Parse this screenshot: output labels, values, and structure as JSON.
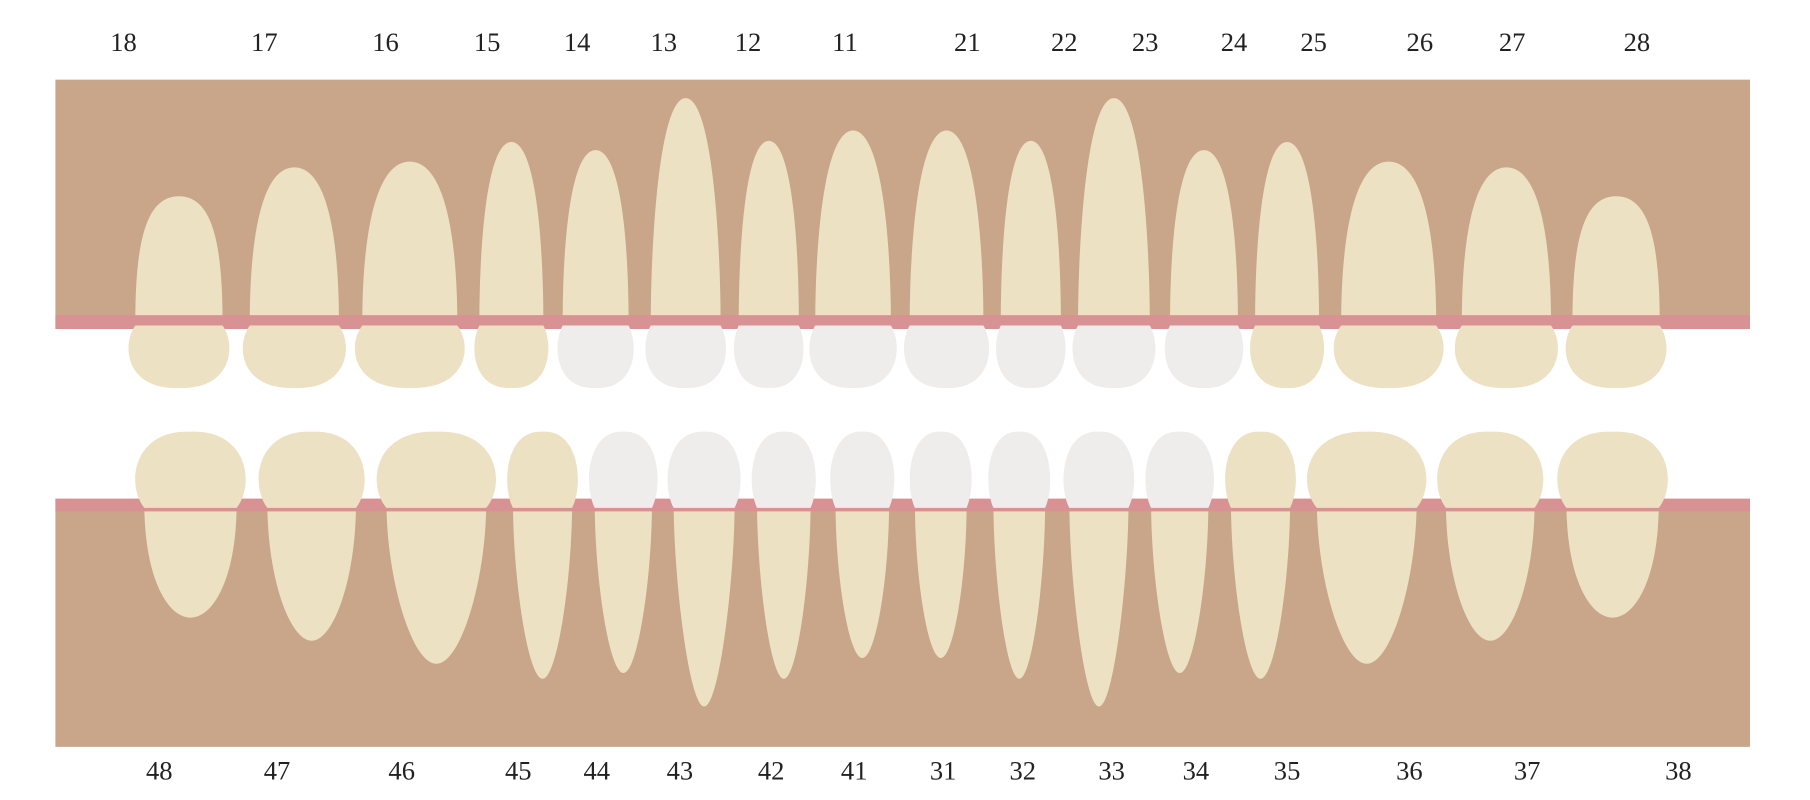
{
  "upper_labels": [
    "18",
    "17",
    "16",
    "15",
    "14",
    "13",
    "12",
    "11",
    "21",
    "22",
    "23",
    "24",
    "25",
    "26",
    "27",
    "28"
  ],
  "lower_labels": [
    "48",
    "47",
    "46",
    "45",
    "44",
    "43",
    "42",
    "41",
    "31",
    "32",
    "33",
    "34",
    "35",
    "36",
    "37",
    "38"
  ]
}
